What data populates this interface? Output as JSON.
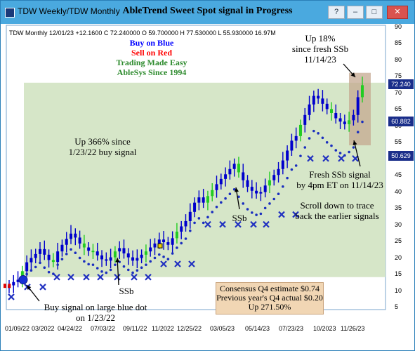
{
  "window": {
    "tab1": "TDW  Weekly/TDW  Monthly",
    "title": "AbleTrend Sweet Spot signal in Progress",
    "buttons": [
      "?",
      "–",
      "□",
      "✕"
    ]
  },
  "info_line": "TDW  Monthly 12/01/23 +12.1600 C 72.240000 O 59.700000 H 77.530000 L 55.930000 16.97M",
  "legend": {
    "buy": "Buy on Blue",
    "sell": "Sell on Red",
    "trading": "Trading Made Easy",
    "ablesys": "AbleSys Since 1994",
    "colors": {
      "buy": "#0000ff",
      "sell": "#ff0000",
      "green": "#2e8b2e"
    }
  },
  "annotations": {
    "up18": "Up 18%",
    "since_fresh": "since fresh SSb",
    "date_fresh": "11/14/23",
    "up366_1": "Up 366% since",
    "up366_2": "1/23/22 buy signal",
    "ssb_a": "SSb",
    "ssb_b": "SSb",
    "fresh1": "Fresh SSb signal",
    "fresh2": "by 4pm ET on 11/14/23",
    "scroll1": "Scroll down to trace",
    "scroll2": "back the earlier signals",
    "buy1": "Buy signal on large blue dot",
    "buy2": "on 1/23/22"
  },
  "consensus": {
    "line1": "Consensus Q4 estimate $0.74",
    "line2": "Previous year's Q4 actual $0.20",
    "line3": "Up 271.50%"
  },
  "y_axis": {
    "ticks": [
      "90",
      "85",
      "80",
      "75",
      "70",
      "65",
      "60",
      "55",
      "50",
      "45",
      "40",
      "35",
      "30",
      "25",
      "20",
      "15",
      "10",
      "5"
    ],
    "badges": [
      "72.240",
      "60.882",
      "50.629"
    ]
  },
  "x_axis": {
    "ticks": [
      "01/09/22",
      "03/2022",
      "04/24/22",
      "07/03/22",
      "09/11/22",
      "11/2022",
      "12/25/22",
      "03/05/23",
      "05/14/23",
      "07/23/23",
      "10/2023",
      "11/26/23"
    ]
  },
  "chart_data": {
    "type": "ohlc",
    "ylim": [
      5,
      90
    ],
    "colors": {
      "up": "#0000cc",
      "green": "#22cc22",
      "red": "#dd0000",
      "dot": "#1a2ebf",
      "cross": "#2030c0",
      "zone": "#d6e6c8"
    },
    "closes": [
      11.5,
      12.5,
      13.2,
      15.8,
      18.5,
      19.8,
      21.0,
      22.5,
      20.8,
      19.2,
      18.6,
      21.8,
      23.8,
      25.6,
      27.2,
      26.0,
      24.2,
      23.0,
      22.0,
      21.8,
      20.6,
      19.4,
      19.0,
      20.0,
      21.8,
      22.8,
      21.2,
      20.0,
      19.0,
      19.8,
      20.8,
      21.8,
      23.0,
      24.2,
      25.4,
      24.6,
      23.8,
      25.8,
      27.8,
      29.4,
      31.0,
      33.8,
      36.6,
      38.2,
      36.6,
      38.6,
      40.4,
      42.2,
      43.8,
      45.2,
      46.8,
      48.4,
      45.8,
      43.4,
      41.4,
      40.2,
      39.4,
      39.8,
      41.8,
      43.4,
      45.0,
      46.8,
      49.4,
      52.4,
      55.4,
      56.8,
      60.2,
      63.2,
      66.4,
      69.0,
      68.2,
      66.6,
      65.0,
      63.8,
      62.2,
      61.2,
      60.4,
      61.6,
      63.2,
      68.6,
      72.24
    ],
    "buy_dot": {
      "index": 5,
      "value": 13.2
    },
    "ssb_markers": [
      19,
      46,
      77
    ]
  }
}
